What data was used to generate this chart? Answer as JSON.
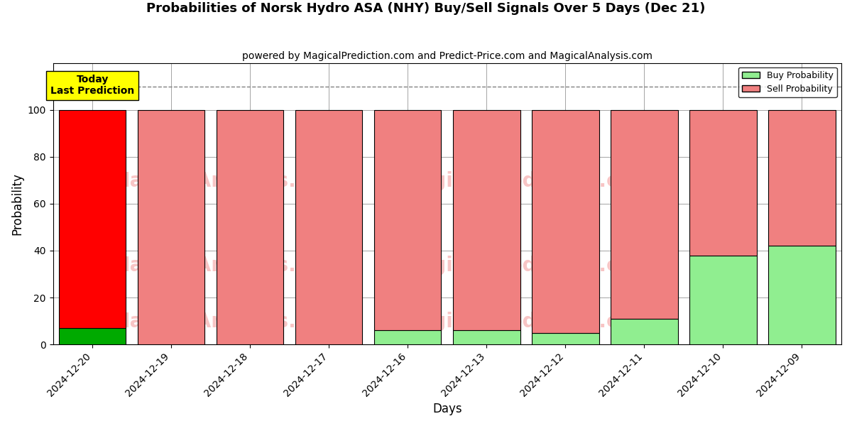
{
  "title": "Probabilities of Norsk Hydro ASA (NHY) Buy/Sell Signals Over 5 Days (Dec 21)",
  "subtitle": "powered by MagicalPrediction.com and Predict-Price.com and MagicalAnalysis.com",
  "xlabel": "Days",
  "ylabel": "Probability",
  "categories": [
    "2024-12-20",
    "2024-12-19",
    "2024-12-18",
    "2024-12-17",
    "2024-12-16",
    "2024-12-13",
    "2024-12-12",
    "2024-12-11",
    "2024-12-10",
    "2024-12-09"
  ],
  "buy_values": [
    7,
    0,
    0,
    0,
    6,
    6,
    5,
    11,
    38,
    42
  ],
  "sell_values": [
    93,
    100,
    100,
    100,
    94,
    94,
    95,
    89,
    62,
    58
  ],
  "buy_color_today": "#00aa00",
  "buy_color_past": "#90EE90",
  "sell_color_today": "#ff0000",
  "sell_color_past": "#f08080",
  "legend_buy_color": "#90EE90",
  "legend_sell_color": "#f08080",
  "bar_edge_color": "black",
  "grid_color": "gray",
  "ylim": [
    0,
    120
  ],
  "dashed_line_y": 110,
  "today_label": "Today\nLast Prediction",
  "today_bg_color": "yellow",
  "watermark_color": "#f08080",
  "watermark_alpha": 0.45,
  "background_color": "white"
}
